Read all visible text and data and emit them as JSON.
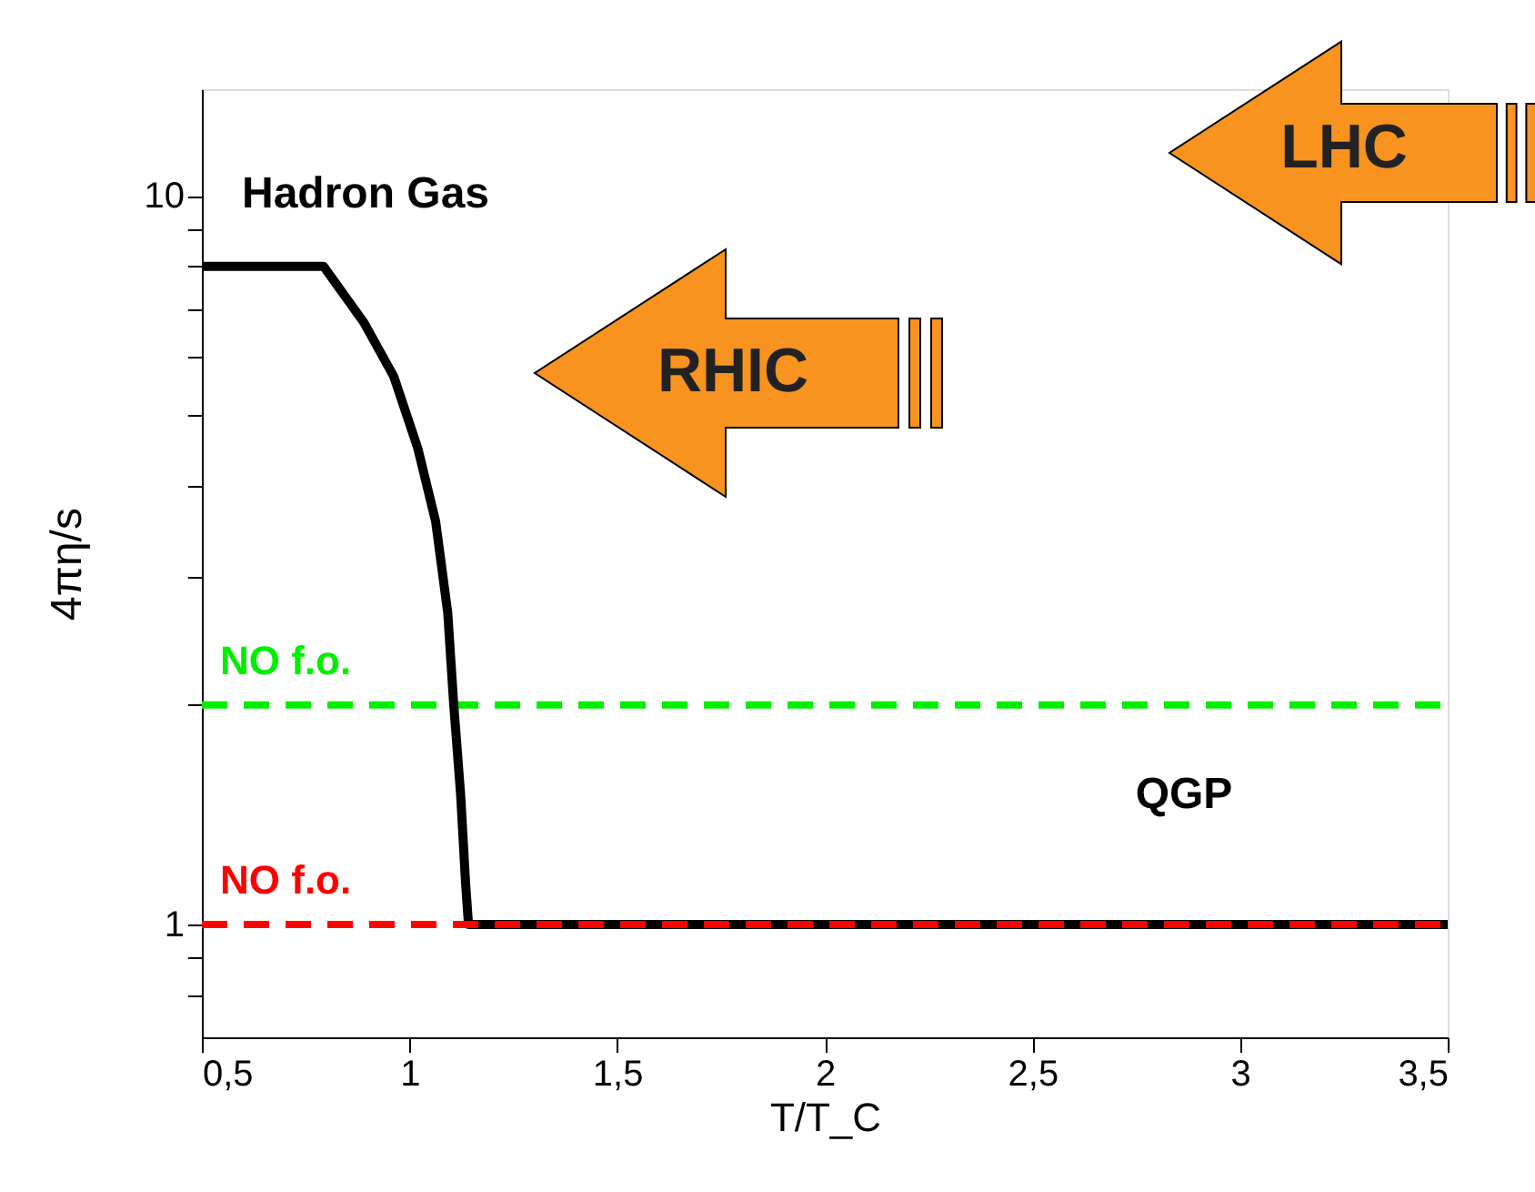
{
  "chart_data": {
    "type": "line",
    "xlabel": "T/T_C",
    "ylabel": "4πη/s",
    "x": [
      0.5,
      0.793,
      0.89,
      0.962,
      1.02,
      1.063,
      1.092,
      1.106,
      1.123,
      1.135,
      1.142,
      3.5
    ],
    "series": [
      {
        "color": "#000000",
        "values": [
          8,
          8,
          6.7,
          5.65,
          4.5,
          3.57,
          2.68,
          2.02,
          1.51,
          1.14,
          1,
          1
        ]
      }
    ],
    "log": "y",
    "grid": false,
    "marker": "none",
    "line_style": "solid",
    "xlim": [
      0.5,
      3.5
    ],
    "xticks": [
      {
        "value": 0.5,
        "label": "0,5"
      },
      1,
      {
        "value": 1.5,
        "label": "1,5"
      },
      2,
      {
        "value": 2.5,
        "label": "2,5"
      },
      3,
      {
        "value": 3.5,
        "label": "3,5"
      }
    ],
    "ylim": [
      0.7,
      14
    ],
    "yticks": [
      {
        "value": 0.8,
        "label": null
      },
      {
        "value": 0.9,
        "label": null
      },
      1,
      {
        "value": 2,
        "label": null
      },
      {
        "value": 3,
        "label": null
      },
      {
        "value": 4,
        "label": null
      },
      {
        "value": 5,
        "label": null
      },
      {
        "value": 6,
        "label": null
      },
      {
        "value": 7,
        "label": null
      },
      {
        "value": 8,
        "label": null
      },
      {
        "value": 9,
        "label": null
      },
      10
    ],
    "ref_lines": [
      {
        "axis": "y",
        "value": 2,
        "label": "NO f.o.",
        "color": "#00ee00",
        "line_style": "dashed"
      },
      {
        "axis": "y",
        "value": 1,
        "label": "NO f.o.",
        "color": "#ff0000",
        "line_style": "dashed"
      }
    ],
    "annotations": [
      "Hadron Gas",
      "QGP",
      "RHIC",
      "LHC"
    ]
  }
}
